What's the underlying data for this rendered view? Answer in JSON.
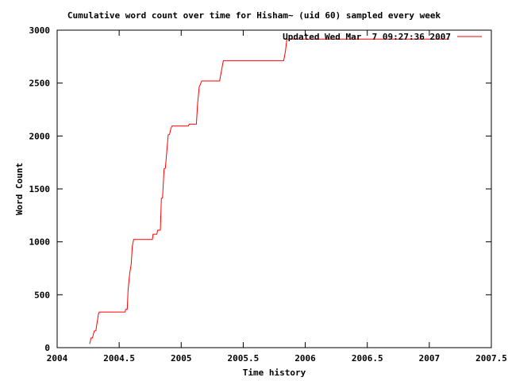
{
  "window": {
    "background": "#ffffff",
    "foreground": "#000000"
  },
  "chart_data": {
    "type": "line",
    "title": "Cumulative word count over time for Hisham~ (uid 60) sampled every week",
    "xlabel": "Time history",
    "ylabel": "Word Count",
    "xlim": [
      2004,
      2007.5
    ],
    "ylim": [
      0,
      3000
    ],
    "xticks": [
      2004,
      2004.5,
      2005,
      2005.5,
      2006,
      2006.5,
      2007,
      2007.5
    ],
    "xtick_labels": [
      "2004",
      "2004.5",
      "2005",
      "2005.5",
      "2006",
      "2006.5",
      "2007",
      "2007.5"
    ],
    "yticks": [
      0,
      500,
      1000,
      1500,
      2000,
      2500,
      3000
    ],
    "ytick_labels": [
      "0",
      "500",
      "1000",
      "1500",
      "2000",
      "2500",
      "3000"
    ],
    "grid": false,
    "tick_style": "inward-mirrored",
    "legend_position": "top-right-inside",
    "series": [
      {
        "name": "Updated Wed Mar  7 09:27:36 2007",
        "color": "#ff0000",
        "points": [
          [
            2004.262,
            35
          ],
          [
            2004.268,
            62
          ],
          [
            2004.272,
            90
          ],
          [
            2004.285,
            92
          ],
          [
            2004.295,
            140
          ],
          [
            2004.3,
            158
          ],
          [
            2004.312,
            160
          ],
          [
            2004.318,
            210
          ],
          [
            2004.326,
            262
          ],
          [
            2004.332,
            315
          ],
          [
            2004.34,
            337
          ],
          [
            2004.548,
            337
          ],
          [
            2004.552,
            362
          ],
          [
            2004.565,
            362
          ],
          [
            2004.572,
            550
          ],
          [
            2004.585,
            700
          ],
          [
            2004.597,
            790
          ],
          [
            2004.606,
            960
          ],
          [
            2004.617,
            1022
          ],
          [
            2004.768,
            1022
          ],
          [
            2004.773,
            1072
          ],
          [
            2004.803,
            1072
          ],
          [
            2004.81,
            1110
          ],
          [
            2004.832,
            1110
          ],
          [
            2004.84,
            1410
          ],
          [
            2004.85,
            1415
          ],
          [
            2004.862,
            1690
          ],
          [
            2004.872,
            1695
          ],
          [
            2004.884,
            1860
          ],
          [
            2004.895,
            2010
          ],
          [
            2004.906,
            2015
          ],
          [
            2004.916,
            2070
          ],
          [
            2004.926,
            2095
          ],
          [
            2005.058,
            2095
          ],
          [
            2005.064,
            2112
          ],
          [
            2005.122,
            2112
          ],
          [
            2005.132,
            2300
          ],
          [
            2005.145,
            2460
          ],
          [
            2005.165,
            2520
          ],
          [
            2005.31,
            2520
          ],
          [
            2005.322,
            2600
          ],
          [
            2005.34,
            2712
          ],
          [
            2005.826,
            2712
          ],
          [
            2005.84,
            2800
          ],
          [
            2005.852,
            2915
          ],
          [
            2007.16,
            2915
          ]
        ]
      }
    ]
  }
}
